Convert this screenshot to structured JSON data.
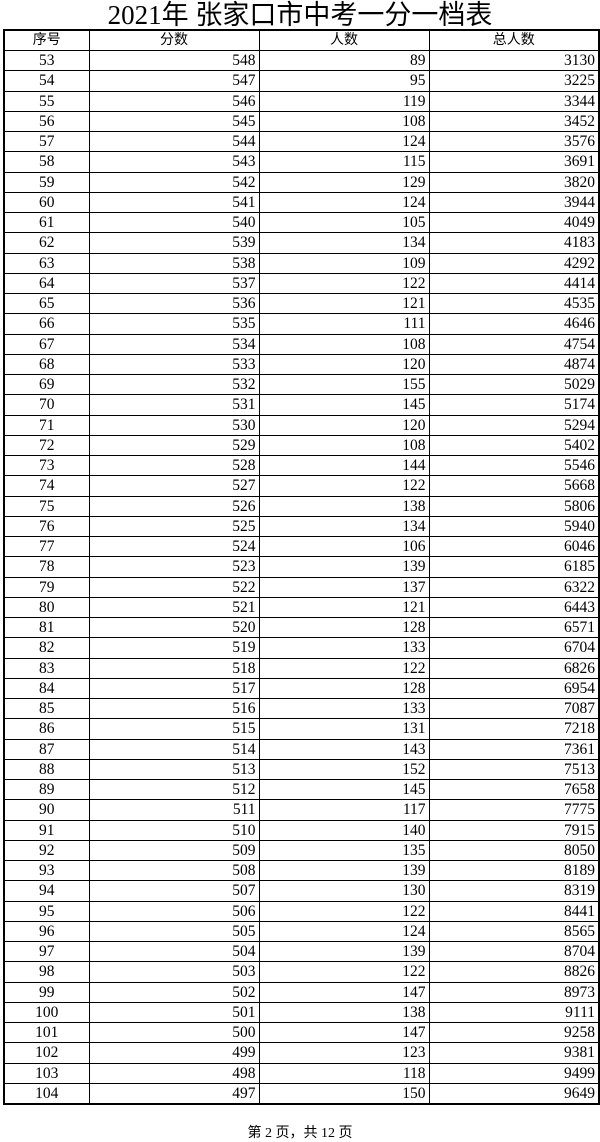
{
  "title": "2021年 张家口市中考一分一档表",
  "table": {
    "headers": [
      "序号",
      "分数",
      "人数",
      "总人数"
    ],
    "rows": [
      [
        "53",
        "548",
        "89",
        "3130"
      ],
      [
        "54",
        "547",
        "95",
        "3225"
      ],
      [
        "55",
        "546",
        "119",
        "3344"
      ],
      [
        "56",
        "545",
        "108",
        "3452"
      ],
      [
        "57",
        "544",
        "124",
        "3576"
      ],
      [
        "58",
        "543",
        "115",
        "3691"
      ],
      [
        "59",
        "542",
        "129",
        "3820"
      ],
      [
        "60",
        "541",
        "124",
        "3944"
      ],
      [
        "61",
        "540",
        "105",
        "4049"
      ],
      [
        "62",
        "539",
        "134",
        "4183"
      ],
      [
        "63",
        "538",
        "109",
        "4292"
      ],
      [
        "64",
        "537",
        "122",
        "4414"
      ],
      [
        "65",
        "536",
        "121",
        "4535"
      ],
      [
        "66",
        "535",
        "111",
        "4646"
      ],
      [
        "67",
        "534",
        "108",
        "4754"
      ],
      [
        "68",
        "533",
        "120",
        "4874"
      ],
      [
        "69",
        "532",
        "155",
        "5029"
      ],
      [
        "70",
        "531",
        "145",
        "5174"
      ],
      [
        "71",
        "530",
        "120",
        "5294"
      ],
      [
        "72",
        "529",
        "108",
        "5402"
      ],
      [
        "73",
        "528",
        "144",
        "5546"
      ],
      [
        "74",
        "527",
        "122",
        "5668"
      ],
      [
        "75",
        "526",
        "138",
        "5806"
      ],
      [
        "76",
        "525",
        "134",
        "5940"
      ],
      [
        "77",
        "524",
        "106",
        "6046"
      ],
      [
        "78",
        "523",
        "139",
        "6185"
      ],
      [
        "79",
        "522",
        "137",
        "6322"
      ],
      [
        "80",
        "521",
        "121",
        "6443"
      ],
      [
        "81",
        "520",
        "128",
        "6571"
      ],
      [
        "82",
        "519",
        "133",
        "6704"
      ],
      [
        "83",
        "518",
        "122",
        "6826"
      ],
      [
        "84",
        "517",
        "128",
        "6954"
      ],
      [
        "85",
        "516",
        "133",
        "7087"
      ],
      [
        "86",
        "515",
        "131",
        "7218"
      ],
      [
        "87",
        "514",
        "143",
        "7361"
      ],
      [
        "88",
        "513",
        "152",
        "7513"
      ],
      [
        "89",
        "512",
        "145",
        "7658"
      ],
      [
        "90",
        "511",
        "117",
        "7775"
      ],
      [
        "91",
        "510",
        "140",
        "7915"
      ],
      [
        "92",
        "509",
        "135",
        "8050"
      ],
      [
        "93",
        "508",
        "139",
        "8189"
      ],
      [
        "94",
        "507",
        "130",
        "8319"
      ],
      [
        "95",
        "506",
        "122",
        "8441"
      ],
      [
        "96",
        "505",
        "124",
        "8565"
      ],
      [
        "97",
        "504",
        "139",
        "8704"
      ],
      [
        "98",
        "503",
        "122",
        "8826"
      ],
      [
        "99",
        "502",
        "147",
        "8973"
      ],
      [
        "100",
        "501",
        "138",
        "9111"
      ],
      [
        "101",
        "500",
        "147",
        "9258"
      ],
      [
        "102",
        "499",
        "123",
        "9381"
      ],
      [
        "103",
        "498",
        "118",
        "9499"
      ],
      [
        "104",
        "497",
        "150",
        "9649"
      ]
    ]
  },
  "footer": "第 2 页，共 12 页"
}
